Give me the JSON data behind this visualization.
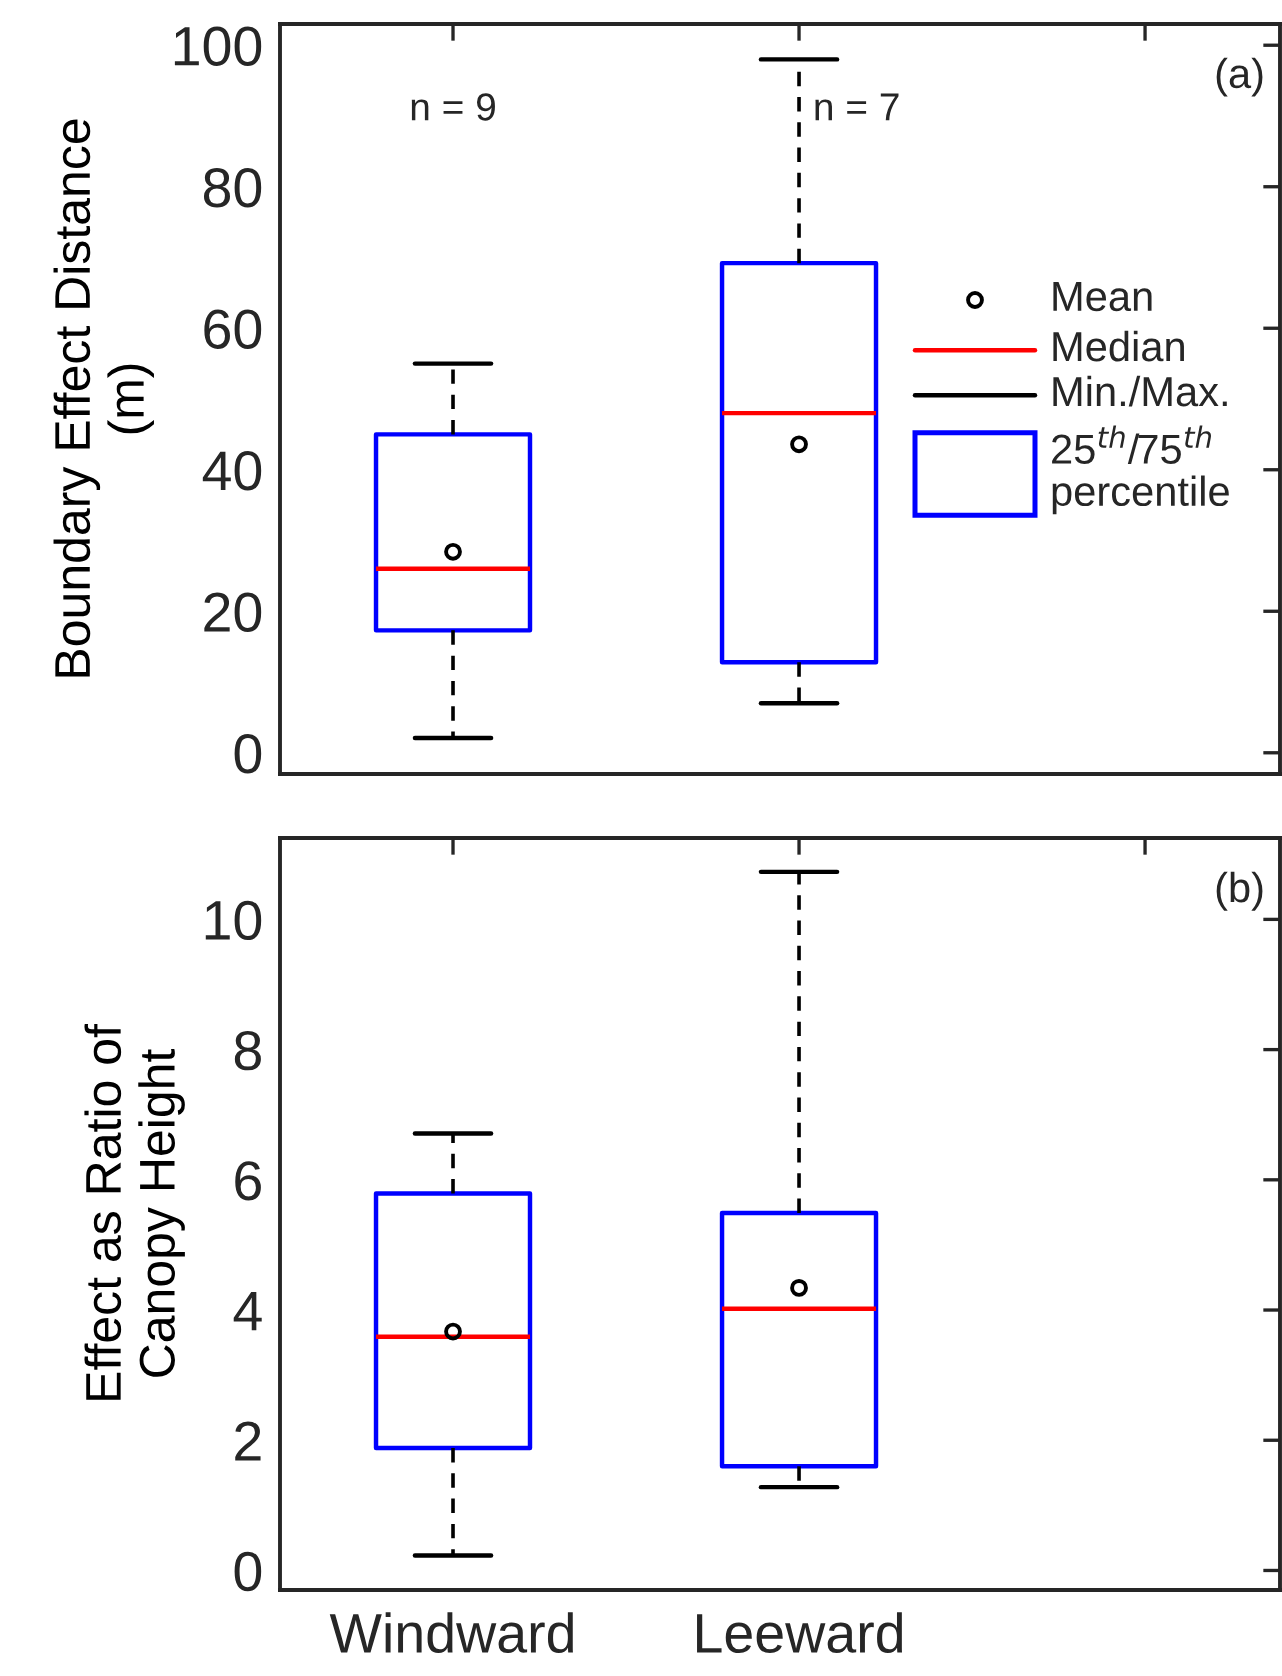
{
  "chart_data": [
    {
      "type": "box",
      "ylabel": "Boundary Effect Distance\n(m)",
      "categories": [
        null,
        null,
        null
      ],
      "tick_labels": "y",
      "boxes": [
        {
          "low": 2.1,
          "q1": 17.3,
          "median": 26,
          "q3": 45,
          "high": 55,
          "mean": 28.4
        },
        {
          "low": 7,
          "q1": 12.8,
          "median": 48,
          "q3": 69.2,
          "high": 98,
          "mean": 43.6
        },
        null
      ],
      "ylim": [
        -3,
        103
      ],
      "yticks": [
        0,
        20,
        40,
        60,
        80,
        100
      ],
      "annotations": [
        "(a)",
        "Mean",
        "Median",
        "Min./Max.",
        "25$^{th}$/75$^{th}$\npercentile",
        "n = 9",
        "n = 7"
      ]
    },
    {
      "type": "box",
      "ylabel": "Effect as Ratio of\nCanopy Height",
      "categories": [
        "Windward",
        "Leeward",
        null
      ],
      "boxes": [
        {
          "low": 0.23,
          "q1": 1.88,
          "median": 3.59,
          "q3": 5.79,
          "high": 6.71,
          "mean": 3.67
        },
        {
          "low": 1.28,
          "q1": 1.6,
          "median": 4.02,
          "q3": 5.49,
          "high": 10.73,
          "mean": 4.34
        },
        null
      ],
      "ylim": [
        -0.3,
        11.25
      ],
      "yticks": [
        0,
        2,
        4,
        6,
        8,
        10
      ],
      "annotations": [
        "(b)"
      ]
    }
  ]
}
